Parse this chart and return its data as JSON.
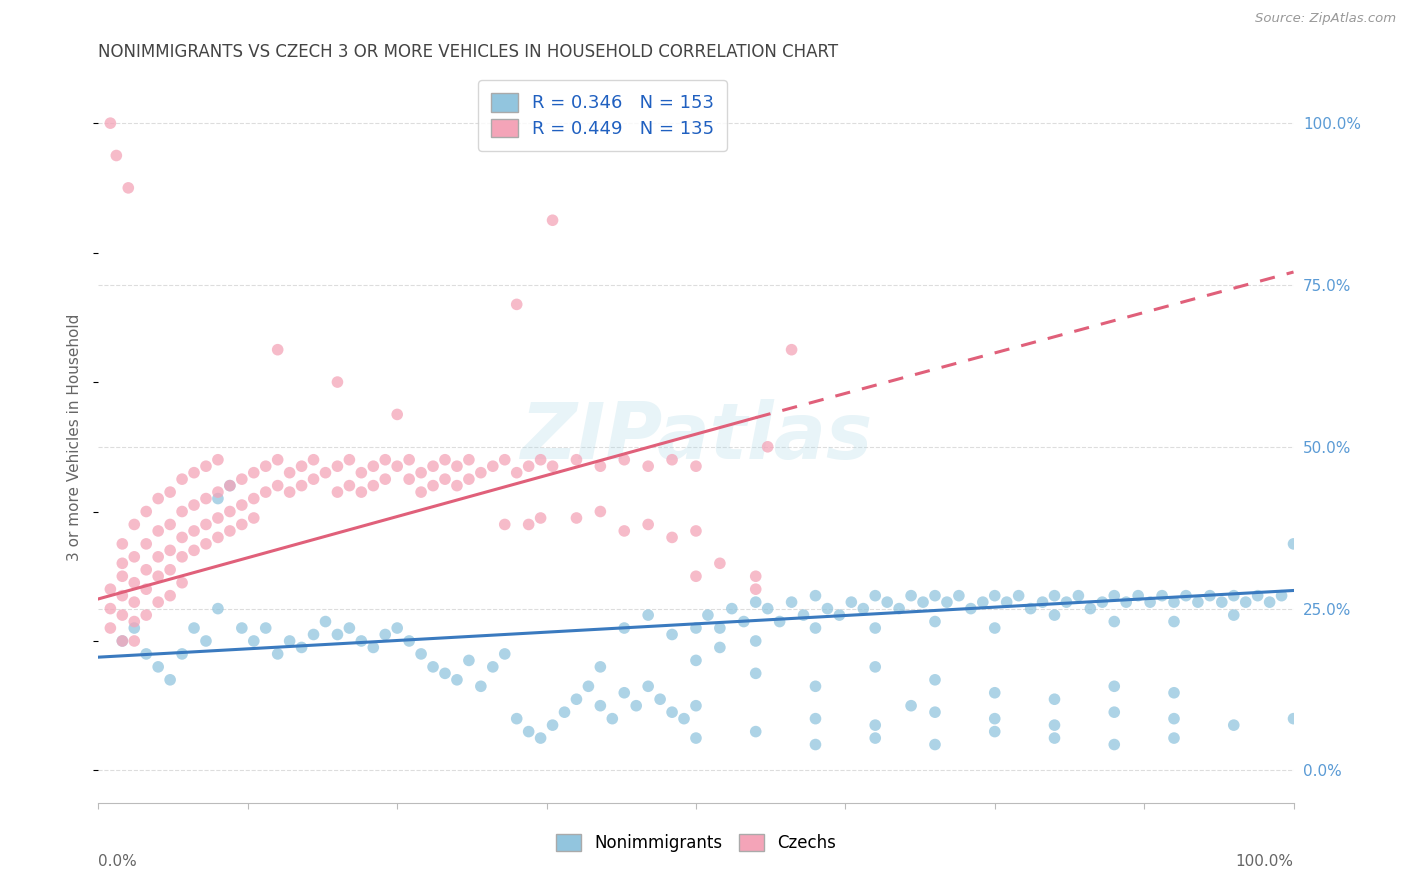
{
  "title": "NONIMMIGRANTS VS CZECH 3 OR MORE VEHICLES IN HOUSEHOLD CORRELATION CHART",
  "source": "Source: ZipAtlas.com",
  "ylabel": "3 or more Vehicles in Household",
  "blue_R": 0.346,
  "blue_N": 153,
  "pink_R": 0.449,
  "pink_N": 135,
  "blue_color": "#92c5de",
  "pink_color": "#f4a4b8",
  "blue_line_color": "#3a7abf",
  "pink_line_color": "#e0607a",
  "legend_text_color": "#2060c0",
  "watermark": "ZIPatlas",
  "background_color": "#ffffff",
  "grid_color": "#dddddd",
  "title_color": "#444444",
  "right_tick_color": "#5b9bd5",
  "ytick_values": [
    0.0,
    0.25,
    0.5,
    0.75,
    1.0
  ],
  "xmin": 0.0,
  "xmax": 1.0,
  "ymin": -0.05,
  "ymax": 1.08,
  "blue_line": [
    [
      0.0,
      0.175
    ],
    [
      1.0,
      0.278
    ]
  ],
  "pink_line": [
    [
      0.0,
      0.265
    ],
    [
      0.55,
      0.545
    ]
  ],
  "pink_dash_line": [
    [
      0.55,
      0.545
    ],
    [
      1.0,
      0.77
    ]
  ],
  "blue_scatter": [
    [
      0.02,
      0.2
    ],
    [
      0.03,
      0.22
    ],
    [
      0.04,
      0.18
    ],
    [
      0.05,
      0.16
    ],
    [
      0.06,
      0.14
    ],
    [
      0.07,
      0.18
    ],
    [
      0.08,
      0.22
    ],
    [
      0.09,
      0.2
    ],
    [
      0.1,
      0.25
    ],
    [
      0.1,
      0.42
    ],
    [
      0.11,
      0.44
    ],
    [
      0.12,
      0.22
    ],
    [
      0.13,
      0.2
    ],
    [
      0.14,
      0.22
    ],
    [
      0.15,
      0.18
    ],
    [
      0.16,
      0.2
    ],
    [
      0.17,
      0.19
    ],
    [
      0.18,
      0.21
    ],
    [
      0.19,
      0.23
    ],
    [
      0.2,
      0.21
    ],
    [
      0.21,
      0.22
    ],
    [
      0.22,
      0.2
    ],
    [
      0.23,
      0.19
    ],
    [
      0.24,
      0.21
    ],
    [
      0.25,
      0.22
    ],
    [
      0.26,
      0.2
    ],
    [
      0.27,
      0.18
    ],
    [
      0.28,
      0.16
    ],
    [
      0.29,
      0.15
    ],
    [
      0.3,
      0.14
    ],
    [
      0.31,
      0.17
    ],
    [
      0.32,
      0.13
    ],
    [
      0.33,
      0.16
    ],
    [
      0.34,
      0.18
    ],
    [
      0.35,
      0.08
    ],
    [
      0.36,
      0.06
    ],
    [
      0.37,
      0.05
    ],
    [
      0.38,
      0.07
    ],
    [
      0.39,
      0.09
    ],
    [
      0.4,
      0.11
    ],
    [
      0.41,
      0.13
    ],
    [
      0.42,
      0.1
    ],
    [
      0.43,
      0.08
    ],
    [
      0.44,
      0.12
    ],
    [
      0.45,
      0.1
    ],
    [
      0.46,
      0.13
    ],
    [
      0.47,
      0.11
    ],
    [
      0.48,
      0.09
    ],
    [
      0.49,
      0.08
    ],
    [
      0.5,
      0.22
    ],
    [
      0.5,
      0.1
    ],
    [
      0.51,
      0.24
    ],
    [
      0.52,
      0.22
    ],
    [
      0.53,
      0.25
    ],
    [
      0.54,
      0.23
    ],
    [
      0.55,
      0.26
    ],
    [
      0.55,
      0.2
    ],
    [
      0.56,
      0.25
    ],
    [
      0.57,
      0.23
    ],
    [
      0.58,
      0.26
    ],
    [
      0.59,
      0.24
    ],
    [
      0.6,
      0.27
    ],
    [
      0.6,
      0.22
    ],
    [
      0.61,
      0.25
    ],
    [
      0.62,
      0.24
    ],
    [
      0.63,
      0.26
    ],
    [
      0.64,
      0.25
    ],
    [
      0.65,
      0.27
    ],
    [
      0.65,
      0.22
    ],
    [
      0.66,
      0.26
    ],
    [
      0.67,
      0.25
    ],
    [
      0.68,
      0.27
    ],
    [
      0.69,
      0.26
    ],
    [
      0.7,
      0.27
    ],
    [
      0.7,
      0.23
    ],
    [
      0.71,
      0.26
    ],
    [
      0.72,
      0.27
    ],
    [
      0.73,
      0.25
    ],
    [
      0.74,
      0.26
    ],
    [
      0.75,
      0.27
    ],
    [
      0.75,
      0.22
    ],
    [
      0.76,
      0.26
    ],
    [
      0.77,
      0.27
    ],
    [
      0.78,
      0.25
    ],
    [
      0.79,
      0.26
    ],
    [
      0.8,
      0.27
    ],
    [
      0.8,
      0.24
    ],
    [
      0.81,
      0.26
    ],
    [
      0.82,
      0.27
    ],
    [
      0.83,
      0.25
    ],
    [
      0.84,
      0.26
    ],
    [
      0.85,
      0.27
    ],
    [
      0.85,
      0.23
    ],
    [
      0.86,
      0.26
    ],
    [
      0.87,
      0.27
    ],
    [
      0.88,
      0.26
    ],
    [
      0.89,
      0.27
    ],
    [
      0.9,
      0.26
    ],
    [
      0.9,
      0.23
    ],
    [
      0.91,
      0.27
    ],
    [
      0.92,
      0.26
    ],
    [
      0.93,
      0.27
    ],
    [
      0.94,
      0.26
    ],
    [
      0.95,
      0.27
    ],
    [
      0.95,
      0.24
    ],
    [
      0.96,
      0.26
    ],
    [
      0.97,
      0.27
    ],
    [
      0.98,
      0.26
    ],
    [
      0.99,
      0.27
    ],
    [
      1.0,
      0.35
    ],
    [
      0.55,
      0.15
    ],
    [
      0.6,
      0.13
    ],
    [
      0.65,
      0.16
    ],
    [
      0.7,
      0.14
    ],
    [
      0.68,
      0.1
    ],
    [
      0.75,
      0.12
    ],
    [
      0.8,
      0.11
    ],
    [
      0.85,
      0.13
    ],
    [
      0.9,
      0.12
    ],
    [
      0.6,
      0.08
    ],
    [
      0.65,
      0.07
    ],
    [
      0.7,
      0.09
    ],
    [
      0.75,
      0.08
    ],
    [
      0.8,
      0.07
    ],
    [
      0.85,
      0.09
    ],
    [
      0.9,
      0.08
    ],
    [
      0.95,
      0.07
    ],
    [
      1.0,
      0.08
    ],
    [
      0.5,
      0.05
    ],
    [
      0.55,
      0.06
    ],
    [
      0.6,
      0.04
    ],
    [
      0.65,
      0.05
    ],
    [
      0.7,
      0.04
    ],
    [
      0.75,
      0.06
    ],
    [
      0.8,
      0.05
    ],
    [
      0.85,
      0.04
    ],
    [
      0.9,
      0.05
    ],
    [
      0.42,
      0.16
    ],
    [
      0.44,
      0.22
    ],
    [
      0.46,
      0.24
    ],
    [
      0.48,
      0.21
    ],
    [
      0.5,
      0.17
    ],
    [
      0.52,
      0.19
    ]
  ],
  "pink_scatter": [
    [
      0.01,
      0.25
    ],
    [
      0.01,
      0.28
    ],
    [
      0.01,
      0.22
    ],
    [
      0.02,
      0.3
    ],
    [
      0.02,
      0.27
    ],
    [
      0.02,
      0.24
    ],
    [
      0.02,
      0.35
    ],
    [
      0.02,
      0.32
    ],
    [
      0.02,
      0.2
    ],
    [
      0.03,
      0.33
    ],
    [
      0.03,
      0.29
    ],
    [
      0.03,
      0.26
    ],
    [
      0.03,
      0.38
    ],
    [
      0.03,
      0.23
    ],
    [
      0.03,
      0.2
    ],
    [
      0.04,
      0.35
    ],
    [
      0.04,
      0.31
    ],
    [
      0.04,
      0.28
    ],
    [
      0.04,
      0.4
    ],
    [
      0.04,
      0.24
    ],
    [
      0.05,
      0.37
    ],
    [
      0.05,
      0.33
    ],
    [
      0.05,
      0.3
    ],
    [
      0.05,
      0.42
    ],
    [
      0.05,
      0.26
    ],
    [
      0.06,
      0.38
    ],
    [
      0.06,
      0.34
    ],
    [
      0.06,
      0.31
    ],
    [
      0.06,
      0.43
    ],
    [
      0.06,
      0.27
    ],
    [
      0.07,
      0.4
    ],
    [
      0.07,
      0.36
    ],
    [
      0.07,
      0.33
    ],
    [
      0.07,
      0.45
    ],
    [
      0.07,
      0.29
    ],
    [
      0.08,
      0.41
    ],
    [
      0.08,
      0.37
    ],
    [
      0.08,
      0.34
    ],
    [
      0.08,
      0.46
    ],
    [
      0.09,
      0.42
    ],
    [
      0.09,
      0.38
    ],
    [
      0.09,
      0.35
    ],
    [
      0.09,
      0.47
    ],
    [
      0.1,
      0.43
    ],
    [
      0.1,
      0.39
    ],
    [
      0.1,
      0.36
    ],
    [
      0.1,
      0.48
    ],
    [
      0.11,
      0.44
    ],
    [
      0.11,
      0.4
    ],
    [
      0.11,
      0.37
    ],
    [
      0.12,
      0.45
    ],
    [
      0.12,
      0.41
    ],
    [
      0.12,
      0.38
    ],
    [
      0.13,
      0.46
    ],
    [
      0.13,
      0.42
    ],
    [
      0.13,
      0.39
    ],
    [
      0.14,
      0.47
    ],
    [
      0.14,
      0.43
    ],
    [
      0.15,
      0.48
    ],
    [
      0.15,
      0.44
    ],
    [
      0.15,
      0.65
    ],
    [
      0.16,
      0.46
    ],
    [
      0.16,
      0.43
    ],
    [
      0.17,
      0.47
    ],
    [
      0.17,
      0.44
    ],
    [
      0.18,
      0.48
    ],
    [
      0.18,
      0.45
    ],
    [
      0.19,
      0.46
    ],
    [
      0.2,
      0.47
    ],
    [
      0.2,
      0.43
    ],
    [
      0.2,
      0.6
    ],
    [
      0.21,
      0.48
    ],
    [
      0.21,
      0.44
    ],
    [
      0.22,
      0.46
    ],
    [
      0.22,
      0.43
    ],
    [
      0.23,
      0.47
    ],
    [
      0.23,
      0.44
    ],
    [
      0.24,
      0.48
    ],
    [
      0.24,
      0.45
    ],
    [
      0.25,
      0.47
    ],
    [
      0.25,
      0.55
    ],
    [
      0.26,
      0.48
    ],
    [
      0.26,
      0.45
    ],
    [
      0.27,
      0.46
    ],
    [
      0.27,
      0.43
    ],
    [
      0.28,
      0.47
    ],
    [
      0.28,
      0.44
    ],
    [
      0.29,
      0.48
    ],
    [
      0.29,
      0.45
    ],
    [
      0.3,
      0.47
    ],
    [
      0.3,
      0.44
    ],
    [
      0.31,
      0.48
    ],
    [
      0.31,
      0.45
    ],
    [
      0.32,
      0.46
    ],
    [
      0.33,
      0.47
    ],
    [
      0.34,
      0.48
    ],
    [
      0.34,
      0.38
    ],
    [
      0.35,
      0.72
    ],
    [
      0.35,
      0.46
    ],
    [
      0.36,
      0.47
    ],
    [
      0.36,
      0.38
    ],
    [
      0.37,
      0.48
    ],
    [
      0.37,
      0.39
    ],
    [
      0.38,
      0.85
    ],
    [
      0.38,
      0.47
    ],
    [
      0.4,
      0.48
    ],
    [
      0.4,
      0.39
    ],
    [
      0.42,
      0.47
    ],
    [
      0.42,
      0.4
    ],
    [
      0.44,
      0.48
    ],
    [
      0.44,
      0.37
    ],
    [
      0.46,
      0.47
    ],
    [
      0.46,
      0.38
    ],
    [
      0.48,
      0.48
    ],
    [
      0.48,
      0.36
    ],
    [
      0.5,
      0.47
    ],
    [
      0.5,
      0.37
    ],
    [
      0.5,
      0.3
    ],
    [
      0.52,
      0.32
    ],
    [
      0.55,
      0.3
    ],
    [
      0.55,
      0.28
    ],
    [
      0.58,
      0.65
    ],
    [
      0.56,
      0.5
    ],
    [
      0.01,
      1.0
    ],
    [
      0.015,
      0.95
    ],
    [
      0.025,
      0.9
    ]
  ]
}
